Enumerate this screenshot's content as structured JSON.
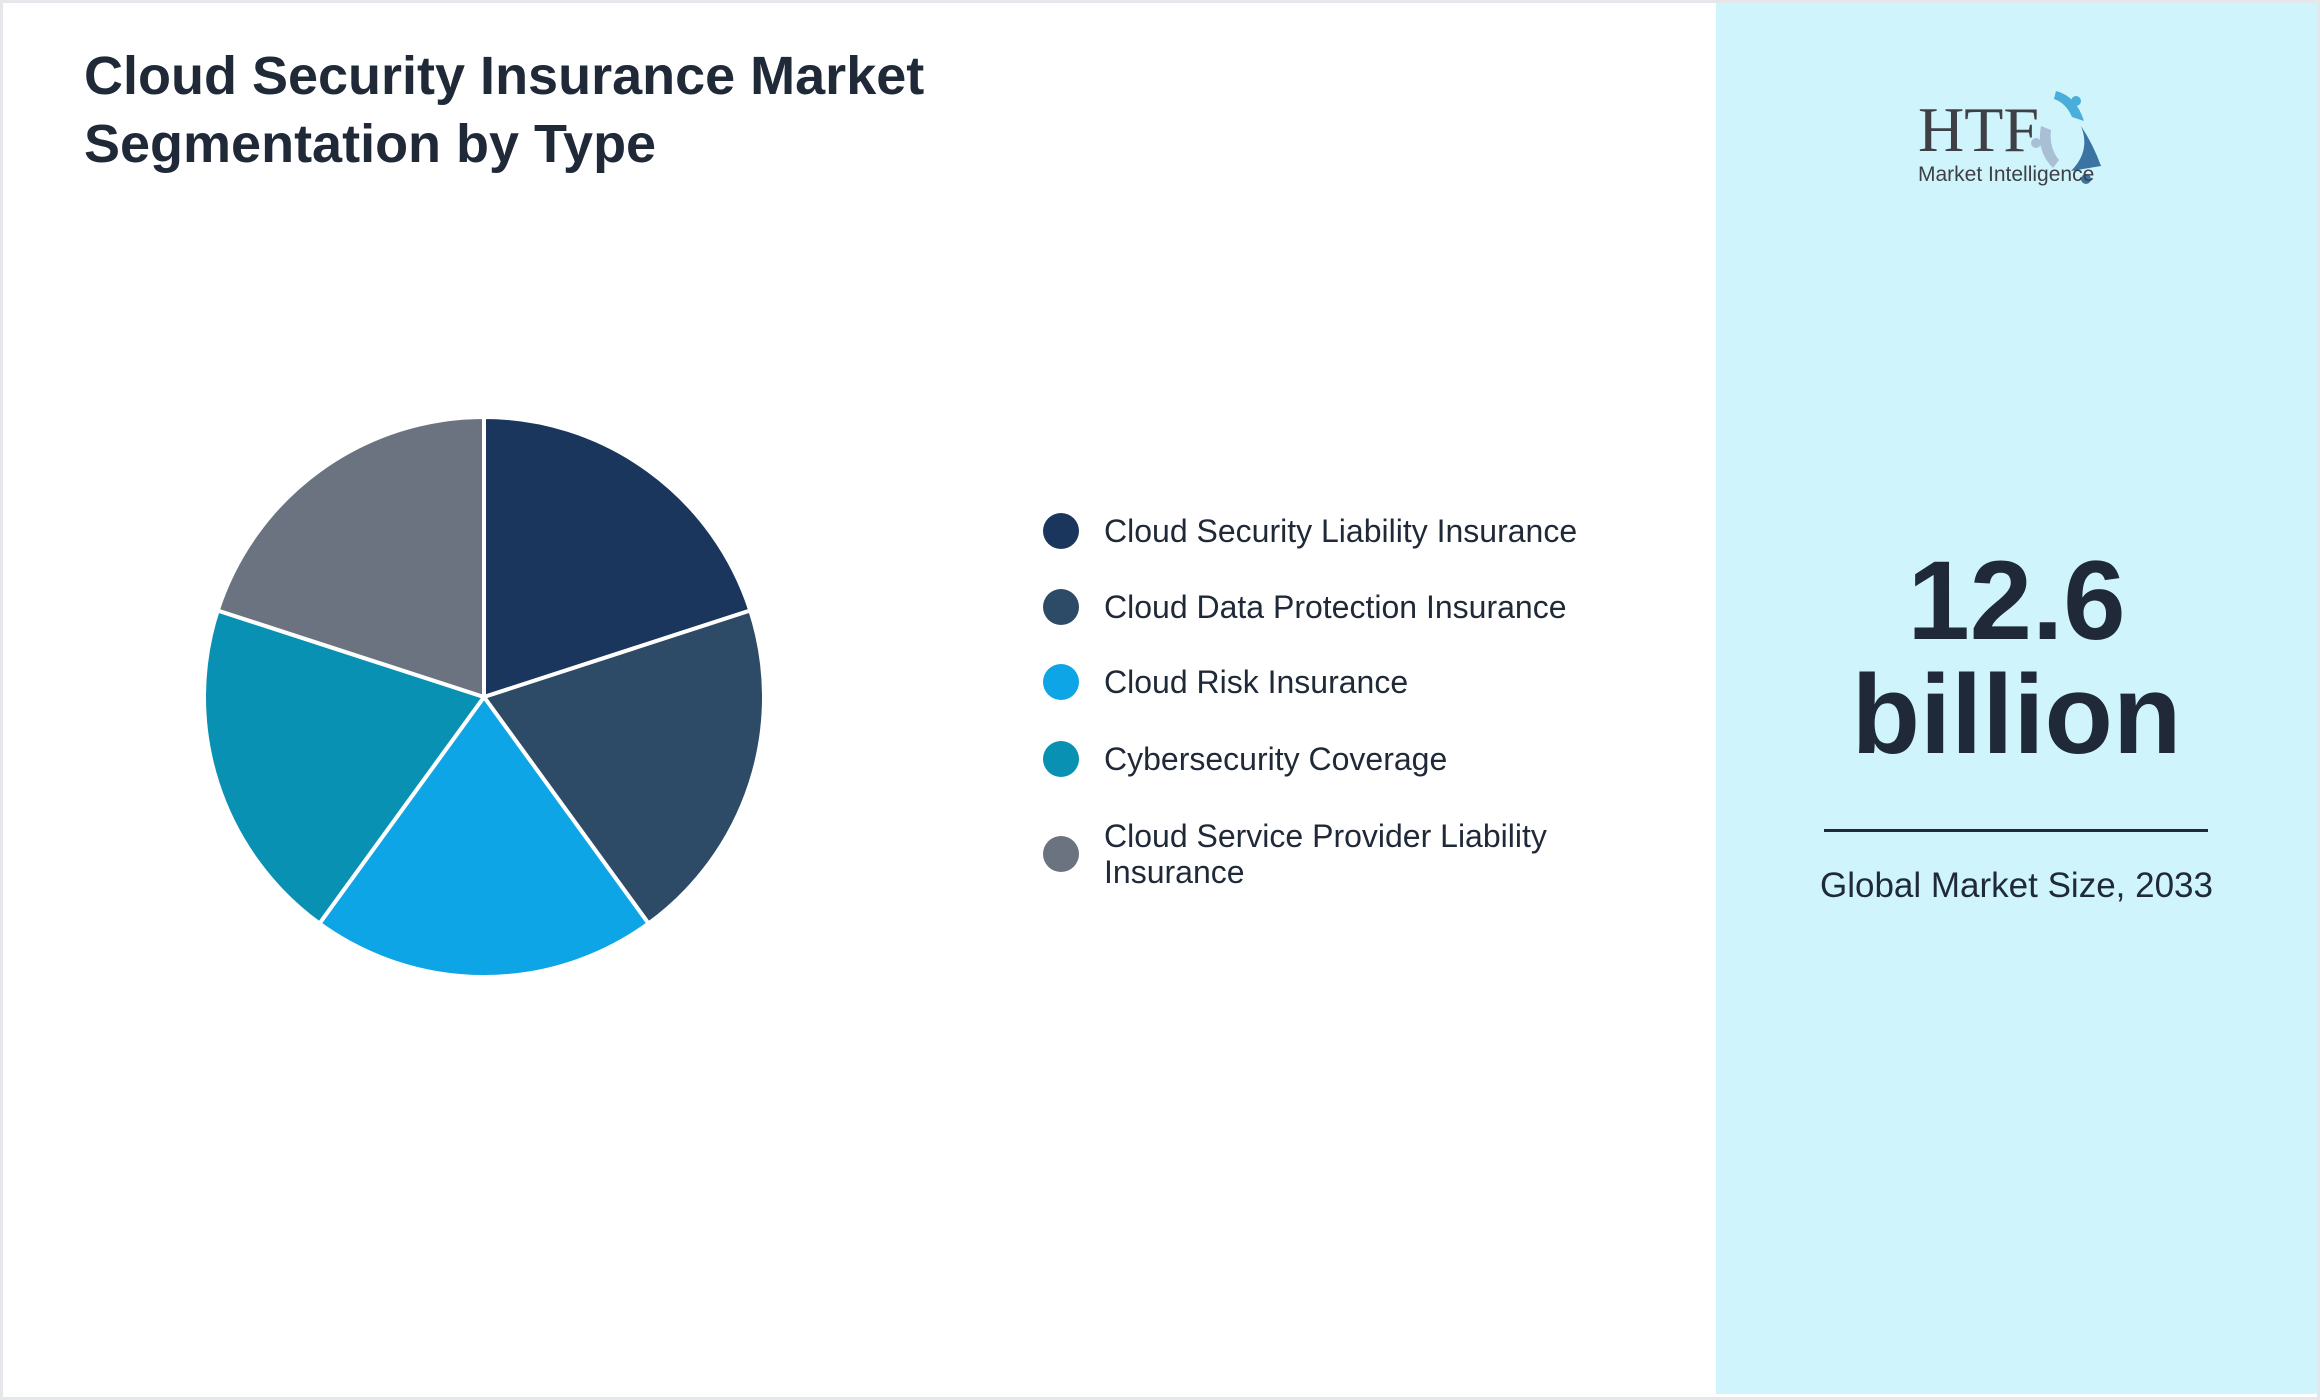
{
  "title": "Cloud Security Insurance Market Segmentation by Type",
  "chart_data": {
    "type": "pie",
    "title": "Cloud Security Insurance Market Segmentation by Type",
    "categories": [
      "Cloud Security Liability Insurance",
      "Cloud Data Protection Insurance",
      "Cloud Risk Insurance",
      "Cybersecurity Coverage",
      "Cloud Service Provider Liability Insurance"
    ],
    "values": [
      20,
      20,
      20,
      20,
      20
    ],
    "colors": [
      "#1b365d",
      "#2d4a66",
      "#0ea5e6",
      "#0891b2",
      "#6b7280"
    ],
    "legend_position": "right",
    "start_angle": "top, clockwise"
  },
  "legend": [
    {
      "label": "Cloud Security Liability Insurance",
      "color": "#1b365d"
    },
    {
      "label": "Cloud Data Protection Insurance",
      "color": "#2d4a66"
    },
    {
      "label": "Cloud Risk Insurance",
      "color": "#0ea5e6"
    },
    {
      "label": "Cybersecurity Coverage",
      "color": "#0891b2"
    },
    {
      "label": "Cloud Service Provider Liability Insurance",
      "color": "#6b7280"
    }
  ],
  "sidebar": {
    "logo": {
      "text": "HTF",
      "subtext": "Market Intelligence"
    },
    "value_line1": "12.6",
    "value_line2": "billion",
    "caption": "Global Market Size, 2033",
    "background": "#cff4fc"
  }
}
